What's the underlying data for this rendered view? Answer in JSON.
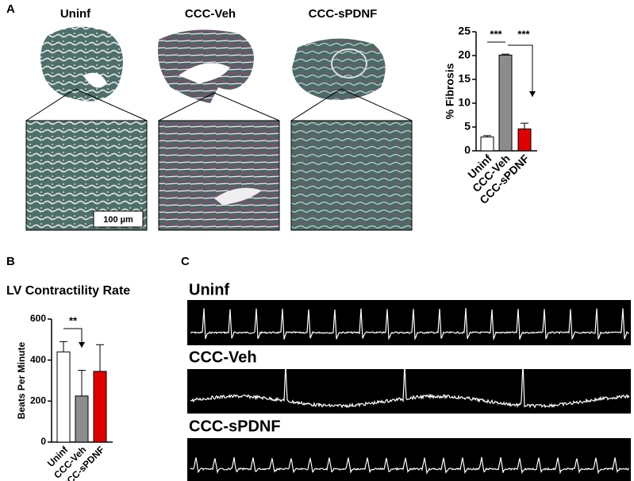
{
  "panel_labels": [
    "A",
    "B",
    "C"
  ],
  "histology": {
    "titles": [
      "Uninf",
      "CCC-Veh",
      "CCC-sPDNF"
    ],
    "scale_bar": "100 µm"
  },
  "chart_data": [
    {
      "type": "bar",
      "ylabel": "% Fibrosis",
      "categories": [
        "Uninf",
        "CCC-Veh",
        "CCC-sPDNF"
      ],
      "values": [
        2.9,
        20.1,
        4.6
      ],
      "errors": [
        0.3,
        0.2,
        1.2
      ],
      "colors": [
        "#ffffff",
        "#8c8c8c",
        "#e00000"
      ],
      "ylim": [
        0,
        25
      ],
      "yticks": [
        0,
        5,
        10,
        15,
        20,
        25
      ],
      "annotations": [
        "***",
        "***"
      ]
    },
    {
      "type": "bar",
      "title": "LV Contractility Rate",
      "ylabel": "Beats Per Minute",
      "categories": [
        "Uninf",
        "CCC-Veh",
        "CCC-sPDNF"
      ],
      "values": [
        440,
        225,
        345
      ],
      "errors": [
        50,
        125,
        130
      ],
      "colors": [
        "#ffffff",
        "#8c8c8c",
        "#e00000"
      ],
      "ylim": [
        0,
        600
      ],
      "yticks": [
        0,
        200,
        400,
        600
      ],
      "annotations": [
        "**"
      ]
    }
  ],
  "traces": {
    "labels": [
      "Uninf",
      "CCC-Veh",
      "CCC-sPDNF"
    ]
  }
}
